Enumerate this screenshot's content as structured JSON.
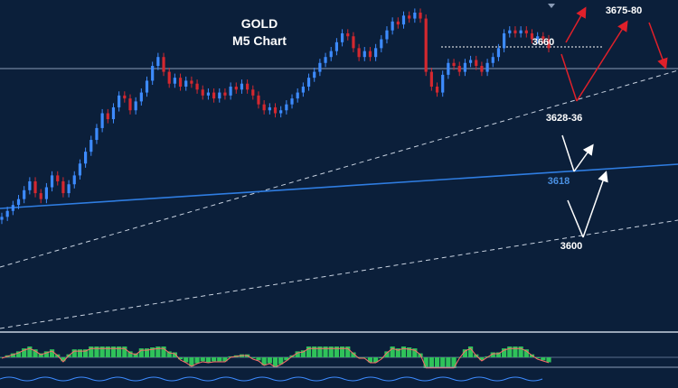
{
  "chart_data": {
    "type": "candlestick",
    "title": "GOLD",
    "subtitle": "M5 Chart",
    "annotations": [
      {
        "id": "r1",
        "text": "3675-80",
        "color": "#ffffff"
      },
      {
        "id": "r2",
        "text": "3660",
        "color": "#ffffff"
      },
      {
        "id": "s1",
        "text": "3628-36",
        "color": "#ffffff"
      },
      {
        "id": "s2",
        "text": "3618",
        "color": "#4a90e2"
      },
      {
        "id": "s3",
        "text": "3600",
        "color": "#ffffff"
      }
    ],
    "candles_close_approx": [
      3592,
      3594,
      3596,
      3598,
      3601,
      3604,
      3600,
      3598,
      3602,
      3606,
      3604,
      3600,
      3603,
      3606,
      3610,
      3614,
      3618,
      3622,
      3627,
      3625,
      3629,
      3633,
      3632,
      3628,
      3631,
      3634,
      3638,
      3643,
      3646,
      3641,
      3637,
      3639,
      3636,
      3638,
      3637,
      3635,
      3633,
      3634,
      3632,
      3634,
      3633,
      3636,
      3635,
      3637,
      3635,
      3633,
      3630,
      3628,
      3629,
      3627,
      3628,
      3630,
      3632,
      3634,
      3636,
      3639,
      3641,
      3644,
      3646,
      3648,
      3651,
      3654,
      3653,
      3649,
      3646,
      3648,
      3646,
      3649,
      3652,
      3655,
      3658,
      3657,
      3660,
      3659,
      3661,
      3659,
      3641,
      3636,
      3634,
      3640,
      3644,
      3643,
      3641,
      3644,
      3645,
      3643,
      3641,
      3644,
      3646,
      3649,
      3654,
      3655,
      3654,
      3655,
      3654,
      3652,
      3653,
      3652,
      3649
    ],
    "colors": {
      "background": "#0b1f3a",
      "bull": "#3d8bff",
      "bear": "#d4282f",
      "trendline": "#2f7de1",
      "arrow_up": "#e0202a",
      "arrow_white": "#ffffff",
      "osc_pos": "#2fc25a",
      "osc_signal": "#ff6b6b"
    },
    "indicator": {
      "type": "histogram-oscillator",
      "name": ""
    }
  }
}
